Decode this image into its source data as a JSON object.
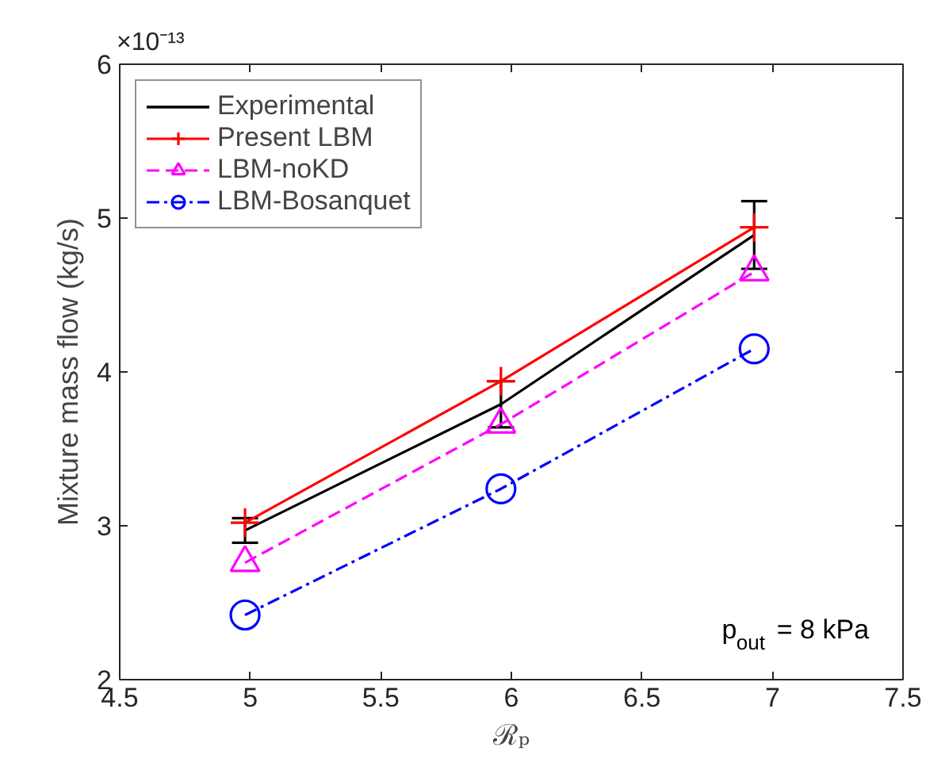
{
  "chart_data": {
    "type": "line",
    "xlabel": "ℛₚ",
    "ylabel": "Mixture mass flow (kg/s)",
    "x": [
      4.98,
      5.96,
      6.93
    ],
    "series": [
      {
        "name": "Experimental",
        "color": "#000000",
        "values": [
          2.97,
          3.79,
          4.89
        ],
        "errors": [
          0.08,
          0.15,
          0.22
        ],
        "marker": "none",
        "line_style": "solid"
      },
      {
        "name": "Present LBM",
        "color": "#ff0000",
        "values": [
          3.02,
          3.94,
          4.94
        ],
        "marker": "cross",
        "line_style": "solid"
      },
      {
        "name": "LBM-noKD",
        "color": "#ff00ff",
        "values": [
          2.76,
          3.66,
          4.65
        ],
        "marker": "triangle",
        "line_style": "dashed"
      },
      {
        "name": "LBM-Bosanquet",
        "color": "#0000ff",
        "values": [
          2.42,
          3.24,
          4.15
        ],
        "marker": "circle",
        "line_style": "dashdot"
      }
    ],
    "xlim": [
      4.5,
      7.5
    ],
    "ylim": [
      2,
      6
    ],
    "xticks": [
      4.5,
      5,
      5.5,
      6,
      6.5,
      7,
      7.5
    ],
    "yticks": [
      2,
      3,
      4,
      5,
      6
    ],
    "annotations": [
      "×10⁻¹³",
      "p$_{out}$ = 8 kPa"
    ],
    "legend": "top left",
    "grid": false
  }
}
